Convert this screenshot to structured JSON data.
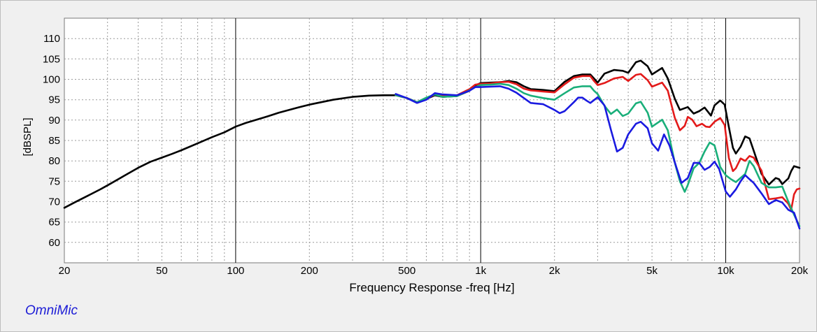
{
  "brand": "OmniMic",
  "chart_data": {
    "type": "line",
    "title": "",
    "xlabel": "Frequency Response -freq [Hz]",
    "ylabel": "[dBSPL]",
    "xscale": "log",
    "xlim": [
      20,
      20000
    ],
    "ylim": [
      55,
      115
    ],
    "grid": true,
    "legend": "none",
    "x_ticks": [
      {
        "value": 20,
        "label": "20"
      },
      {
        "value": 50,
        "label": "50"
      },
      {
        "value": 100,
        "label": "100"
      },
      {
        "value": 200,
        "label": "200"
      },
      {
        "value": 500,
        "label": "500"
      },
      {
        "value": 1000,
        "label": "1k"
      },
      {
        "value": 2000,
        "label": "2k"
      },
      {
        "value": 5000,
        "label": "5k"
      },
      {
        "value": 10000,
        "label": "10k"
      },
      {
        "value": 20000,
        "label": "20k"
      }
    ],
    "y_ticks": [
      60,
      65,
      70,
      75,
      80,
      85,
      90,
      95,
      100,
      105,
      110
    ],
    "series": [
      {
        "color": "#000000",
        "points": [
          [
            20,
            68.5
          ],
          [
            22,
            69.8
          ],
          [
            25,
            71.5
          ],
          [
            28,
            73
          ],
          [
            30,
            74
          ],
          [
            35,
            76.3
          ],
          [
            40,
            78.3
          ],
          [
            45,
            79.8
          ],
          [
            50,
            80.8
          ],
          [
            55,
            81.7
          ],
          [
            60,
            82.6
          ],
          [
            70,
            84.3
          ],
          [
            80,
            85.8
          ],
          [
            90,
            87
          ],
          [
            100,
            88.4
          ],
          [
            110,
            89.3
          ],
          [
            130,
            90.6
          ],
          [
            150,
            91.8
          ],
          [
            180,
            93.1
          ],
          [
            200,
            93.8
          ],
          [
            250,
            95
          ],
          [
            300,
            95.7
          ],
          [
            350,
            96
          ],
          [
            400,
            96.1
          ],
          [
            450,
            96.1
          ],
          [
            500,
            95.4
          ],
          [
            550,
            94.4
          ],
          [
            600,
            95.2
          ],
          [
            650,
            96.1
          ],
          [
            700,
            95.7
          ],
          [
            800,
            95.9
          ],
          [
            900,
            97.2
          ],
          [
            950,
            98.5
          ],
          [
            1000,
            99.1
          ],
          [
            1100,
            99.2
          ],
          [
            1200,
            99.3
          ],
          [
            1300,
            99.6
          ],
          [
            1400,
            99.3
          ],
          [
            1500,
            98.3
          ],
          [
            1600,
            97.6
          ],
          [
            1800,
            97.4
          ],
          [
            2000,
            97.1
          ],
          [
            2200,
            99.4
          ],
          [
            2400,
            100.8
          ],
          [
            2600,
            101.2
          ],
          [
            2800,
            101.2
          ],
          [
            2900,
            100.2
          ],
          [
            3000,
            99.2
          ],
          [
            3200,
            101.4
          ],
          [
            3500,
            102.3
          ],
          [
            3800,
            102.1
          ],
          [
            4000,
            101.6
          ],
          [
            4300,
            104.2
          ],
          [
            4500,
            104.6
          ],
          [
            4800,
            103.2
          ],
          [
            5000,
            101.2
          ],
          [
            5500,
            102.8
          ],
          [
            5800,
            100.2
          ],
          [
            6200,
            95.2
          ],
          [
            6500,
            92.5
          ],
          [
            7000,
            93.2
          ],
          [
            7400,
            91.6
          ],
          [
            7800,
            92.2
          ],
          [
            8200,
            93.1
          ],
          [
            8700,
            91.1
          ],
          [
            9000,
            93.6
          ],
          [
            9500,
            94.8
          ],
          [
            9900,
            93.8
          ],
          [
            10300,
            88.3
          ],
          [
            10700,
            83.2
          ],
          [
            11000,
            81.8
          ],
          [
            11500,
            83.5
          ],
          [
            12000,
            86
          ],
          [
            12500,
            85.5
          ],
          [
            13000,
            82.5
          ],
          [
            14000,
            76.8
          ],
          [
            15000,
            74.2
          ],
          [
            16000,
            75.8
          ],
          [
            16500,
            75.5
          ],
          [
            17000,
            74.3
          ],
          [
            18000,
            75.7
          ],
          [
            18500,
            77.5
          ],
          [
            19000,
            78.7
          ],
          [
            20000,
            78.3
          ]
        ]
      },
      {
        "color": "#e31a1a",
        "points": [
          [
            450,
            96.1
          ],
          [
            500,
            95.4
          ],
          [
            550,
            94.4
          ],
          [
            600,
            95.2
          ],
          [
            650,
            96.3
          ],
          [
            700,
            95.9
          ],
          [
            800,
            96.1
          ],
          [
            900,
            97.6
          ],
          [
            950,
            98.7
          ],
          [
            1000,
            98.9
          ],
          [
            1100,
            99
          ],
          [
            1200,
            99.3
          ],
          [
            1300,
            99.4
          ],
          [
            1400,
            98.8
          ],
          [
            1500,
            97.7
          ],
          [
            1600,
            97.3
          ],
          [
            1800,
            97
          ],
          [
            2000,
            96.8
          ],
          [
            2200,
            98.8
          ],
          [
            2400,
            100.4
          ],
          [
            2600,
            100.8
          ],
          [
            2800,
            100.8
          ],
          [
            2900,
            99.6
          ],
          [
            3000,
            98.6
          ],
          [
            3200,
            99.1
          ],
          [
            3500,
            100.2
          ],
          [
            3800,
            100.6
          ],
          [
            4000,
            99.6
          ],
          [
            4300,
            101.1
          ],
          [
            4500,
            101.3
          ],
          [
            4800,
            99.8
          ],
          [
            5000,
            98.2
          ],
          [
            5500,
            99.2
          ],
          [
            5800,
            97.2
          ],
          [
            6200,
            90.5
          ],
          [
            6500,
            87.5
          ],
          [
            6800,
            88.6
          ],
          [
            7000,
            90.8
          ],
          [
            7300,
            90.1
          ],
          [
            7600,
            88.5
          ],
          [
            8000,
            89.1
          ],
          [
            8300,
            88.4
          ],
          [
            8600,
            88.3
          ],
          [
            9000,
            89.6
          ],
          [
            9500,
            90.5
          ],
          [
            9900,
            88.8
          ],
          [
            10300,
            80.7
          ],
          [
            10700,
            77.5
          ],
          [
            11000,
            78.2
          ],
          [
            11500,
            80.6
          ],
          [
            12000,
            80
          ],
          [
            12500,
            81.2
          ],
          [
            13000,
            80.8
          ],
          [
            14000,
            77.6
          ],
          [
            15000,
            70.6
          ],
          [
            16000,
            70.8
          ],
          [
            17000,
            71.1
          ],
          [
            18000,
            69.5
          ],
          [
            18500,
            68
          ],
          [
            19000,
            71.8
          ],
          [
            19500,
            73
          ],
          [
            20000,
            73.2
          ]
        ]
      },
      {
        "color": "#1aaf7a",
        "points": [
          [
            450,
            96.1
          ],
          [
            500,
            95.4
          ],
          [
            550,
            94.4
          ],
          [
            600,
            95.5
          ],
          [
            650,
            96.3
          ],
          [
            700,
            95.7
          ],
          [
            800,
            95.9
          ],
          [
            900,
            97.3
          ],
          [
            950,
            98.1
          ],
          [
            1000,
            98.6
          ],
          [
            1100,
            98.7
          ],
          [
            1200,
            98.9
          ],
          [
            1300,
            98.6
          ],
          [
            1400,
            97.7
          ],
          [
            1500,
            96.6
          ],
          [
            1600,
            96
          ],
          [
            1800,
            95.4
          ],
          [
            2000,
            95
          ],
          [
            2200,
            96.6
          ],
          [
            2400,
            98
          ],
          [
            2600,
            98.3
          ],
          [
            2800,
            98.3
          ],
          [
            2900,
            97.2
          ],
          [
            3000,
            96.4
          ],
          [
            3200,
            93.5
          ],
          [
            3400,
            91.5
          ],
          [
            3600,
            92.6
          ],
          [
            3800,
            91
          ],
          [
            4000,
            91.6
          ],
          [
            4300,
            94.1
          ],
          [
            4500,
            94.5
          ],
          [
            4800,
            91.8
          ],
          [
            5000,
            88.4
          ],
          [
            5500,
            90.1
          ],
          [
            5800,
            87.5
          ],
          [
            6200,
            79.5
          ],
          [
            6500,
            75
          ],
          [
            6800,
            72.4
          ],
          [
            7000,
            74.1
          ],
          [
            7400,
            78.2
          ],
          [
            7800,
            79.5
          ],
          [
            8200,
            82.3
          ],
          [
            8600,
            84.5
          ],
          [
            9000,
            83.8
          ],
          [
            9500,
            78.5
          ],
          [
            10000,
            76.5
          ],
          [
            10500,
            75.5
          ],
          [
            11000,
            74.8
          ],
          [
            12000,
            76.8
          ],
          [
            12500,
            80
          ],
          [
            13000,
            78.7
          ],
          [
            14000,
            74.6
          ],
          [
            15000,
            73.5
          ],
          [
            16000,
            73.5
          ],
          [
            17000,
            73.7
          ],
          [
            18000,
            70
          ],
          [
            19000,
            66.8
          ],
          [
            20000,
            64
          ]
        ]
      },
      {
        "color": "#1a1ae0",
        "points": [
          [
            450,
            96.4
          ],
          [
            500,
            95.4
          ],
          [
            550,
            94.2
          ],
          [
            600,
            95
          ],
          [
            650,
            96.6
          ],
          [
            700,
            96.3
          ],
          [
            800,
            96.1
          ],
          [
            900,
            97.2
          ],
          [
            950,
            98.1
          ],
          [
            1000,
            98.1
          ],
          [
            1100,
            98.2
          ],
          [
            1200,
            98.3
          ],
          [
            1300,
            97.7
          ],
          [
            1400,
            96.7
          ],
          [
            1500,
            95.4
          ],
          [
            1600,
            94.2
          ],
          [
            1800,
            93.9
          ],
          [
            2000,
            92.5
          ],
          [
            2100,
            91.7
          ],
          [
            2200,
            92.2
          ],
          [
            2400,
            94.4
          ],
          [
            2500,
            95.5
          ],
          [
            2600,
            95.5
          ],
          [
            2700,
            94.8
          ],
          [
            2800,
            94.2
          ],
          [
            3000,
            95.6
          ],
          [
            3200,
            93.6
          ],
          [
            3400,
            87.6
          ],
          [
            3600,
            82.3
          ],
          [
            3800,
            83.2
          ],
          [
            4000,
            86.5
          ],
          [
            4300,
            89.1
          ],
          [
            4500,
            89.6
          ],
          [
            4800,
            88
          ],
          [
            5000,
            84.3
          ],
          [
            5300,
            82.5
          ],
          [
            5600,
            86.5
          ],
          [
            5900,
            83.7
          ],
          [
            6300,
            78.3
          ],
          [
            6600,
            74.6
          ],
          [
            7000,
            75.8
          ],
          [
            7400,
            79.5
          ],
          [
            7800,
            79.5
          ],
          [
            8200,
            77.8
          ],
          [
            8600,
            78.5
          ],
          [
            9000,
            79.8
          ],
          [
            9400,
            78
          ],
          [
            10000,
            72.5
          ],
          [
            10400,
            71.2
          ],
          [
            11000,
            73
          ],
          [
            11500,
            75
          ],
          [
            12000,
            76.5
          ],
          [
            12500,
            75.5
          ],
          [
            13000,
            74.6
          ],
          [
            14000,
            72
          ],
          [
            15000,
            69.4
          ],
          [
            16000,
            70.4
          ],
          [
            17000,
            69.8
          ],
          [
            18000,
            68
          ],
          [
            19000,
            67.3
          ],
          [
            20000,
            63.4
          ]
        ]
      }
    ]
  }
}
